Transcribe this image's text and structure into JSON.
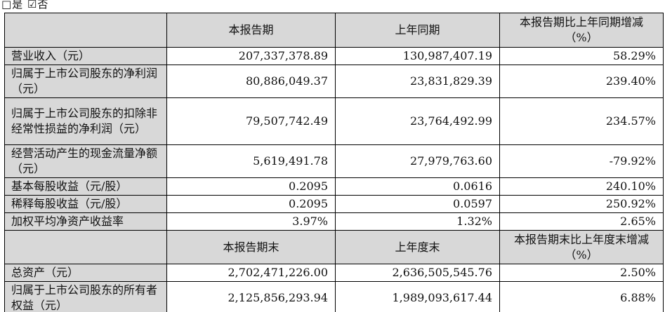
{
  "page": {
    "checkbox_line": "□是 ☑否"
  },
  "colors": {
    "header_bg": "#d8d8d8",
    "label_bg": "#d8d8d8",
    "border": "#000000",
    "text": "#111111"
  },
  "table": {
    "header1": {
      "col1": "",
      "col2": "本报告期",
      "col3": "上年同期",
      "col4_line1": "本报告期比上年同期增减",
      "col4_line2": "（%）"
    },
    "rows1": [
      {
        "label": "营业收入（元）",
        "current": "207,337,378.89",
        "prior": "130,987,407.19",
        "change": "58.29%"
      },
      {
        "label": "归属于上市公司股东的净利润（元）",
        "current": "80,886,049.37",
        "prior": "23,831,829.39",
        "change": "239.40%"
      },
      {
        "label": "归属于上市公司股东的扣除非经常性损益的净利润（元）",
        "current": "79,507,742.49",
        "prior": "23,764,492.99",
        "change": "234.57%"
      },
      {
        "label": "经营活动产生的现金流量净额（元）",
        "current": "5,619,491.78",
        "prior": "27,979,763.60",
        "change": "-79.92%"
      },
      {
        "label": "基本每股收益（元/股）",
        "current": "0.2095",
        "prior": "0.0616",
        "change": "240.10%"
      },
      {
        "label": "稀释每股收益（元/股）",
        "current": "0.2095",
        "prior": "0.0597",
        "change": "250.92%"
      },
      {
        "label": "加权平均净资产收益率",
        "current": "3.97%",
        "prior": "1.32%",
        "change": "2.65%"
      }
    ],
    "header2": {
      "col1": "",
      "col2": "本报告期末",
      "col3": "上年度末",
      "col4_line1": "本报告期末比上年度末增减",
      "col4_line2": "（%）"
    },
    "rows2": [
      {
        "label": "总资产（元）",
        "current": "2,702,471,226.00",
        "prior": "2,636,505,545.76",
        "change": "2.50%"
      },
      {
        "label": "归属于上市公司股东的所有者权益（元）",
        "current": "2,125,856,293.94",
        "prior": "1,989,093,617.44",
        "change": "6.88%"
      }
    ]
  }
}
